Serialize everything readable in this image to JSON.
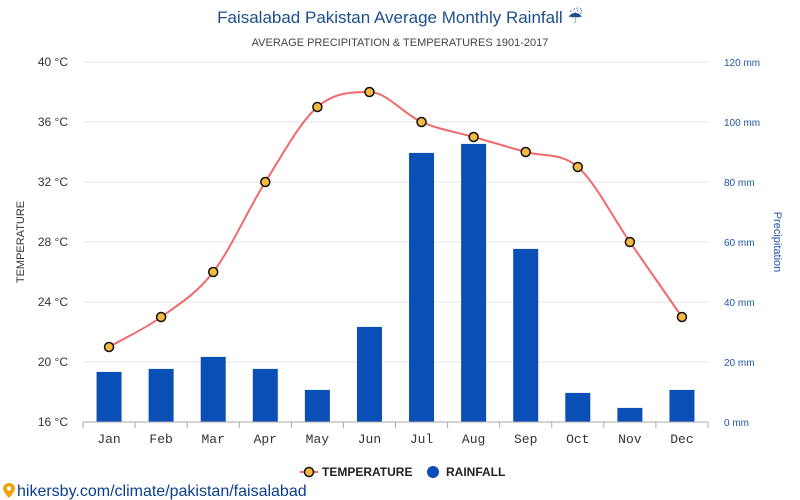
{
  "chart_data": {
    "type": "bar",
    "title": "Faisalabad Pakistan Average Monthly Rainfall",
    "title_icon": "umbrella-rain-icon",
    "subtitle": "AVERAGE PRECIPITATION & TEMPERATURES 1901-2017",
    "categories": [
      "Jan",
      "Feb",
      "Mar",
      "Apr",
      "May",
      "Jun",
      "Jul",
      "Aug",
      "Sep",
      "Oct",
      "Nov",
      "Dec"
    ],
    "series": [
      {
        "name": "TEMPERATURE",
        "type": "line",
        "axis": "left",
        "color": "#f06a6a",
        "marker_fill": "#f5b942",
        "values": [
          21,
          23,
          26,
          32,
          37,
          38,
          36,
          35,
          34,
          33,
          28,
          23
        ]
      },
      {
        "name": "RAINFALL",
        "type": "bar",
        "axis": "right",
        "color": "#0a4fb5",
        "values": [
          16.7,
          17.7,
          21.7,
          17.7,
          10.7,
          31.7,
          89.7,
          92.7,
          57.7,
          9.7,
          4.7,
          10.7
        ]
      }
    ],
    "y_left": {
      "label": "TEMPERATURE",
      "range": [
        16,
        40
      ],
      "ticks": [
        "16 °C",
        "20 °C",
        "24 °C",
        "28 °C",
        "32 °C",
        "36 °C",
        "40 °C"
      ]
    },
    "y_right": {
      "label": "Precipitation",
      "range": [
        0,
        120
      ],
      "ticks": [
        "0 mm",
        "20 mm",
        "40 mm",
        "60 mm",
        "80 mm",
        "100 mm",
        "120 mm"
      ],
      "color": "#1d56a6"
    },
    "grid": true,
    "legend_position": "bottom-center"
  },
  "footer": {
    "source": "hikersby.com/climate/pakistan/faisalabad",
    "icon": "map-pin-icon"
  }
}
